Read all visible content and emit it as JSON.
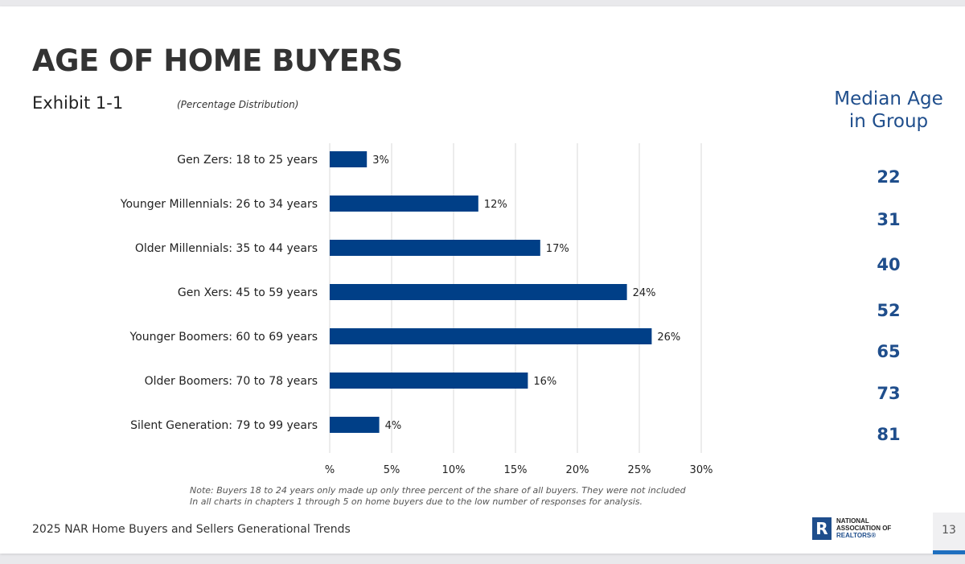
{
  "slide": {
    "title": "AGE OF HOME BUYERS",
    "exhibit": "Exhibit 1-1",
    "subtitle": "(Percentage Distribution)",
    "median_header_line1": "Median Age",
    "median_header_line2": "in Group",
    "median_ages": [
      "22",
      "31",
      "40",
      "52",
      "65",
      "73",
      "81"
    ],
    "note_line1": "Note: Buyers 18 to 24 years only made up only three percent of the share of all buyers. They were not included",
    "note_line2": "In all charts in chapters 1 through 5 on home buyers due to the low number of responses for analysis.",
    "footer_title": "2025 NAR Home Buyers and Sellers Generational Trends",
    "logo_line1": "NATIONAL",
    "logo_line2": "ASSOCIATION OF",
    "logo_line3": "REALTORS®",
    "page_number": "13",
    "colors": {
      "bar": "#003f87",
      "accent": "#1f4e8c",
      "grid": "#d9d9d9"
    }
  },
  "chart_data": {
    "type": "bar",
    "orientation": "horizontal",
    "categories": [
      "Gen Zers: 18 to 25 years",
      "Younger Millennials: 26 to 34 years",
      "Older Millennials: 35 to 44 years",
      "Gen Xers: 45 to 59 years",
      "Younger Boomers: 60 to 69 years",
      "Older Boomers: 70 to 78 years",
      "Silent Generation: 79 to 99 years"
    ],
    "values": [
      3,
      12,
      17,
      24,
      26,
      16,
      4
    ],
    "data_labels": [
      "3%",
      "12%",
      "17%",
      "24%",
      "26%",
      "16%",
      "4%"
    ],
    "x_ticks": [
      "%",
      "5%",
      "10%",
      "15%",
      "20%",
      "25%",
      "30%"
    ],
    "x_tick_values": [
      0,
      5,
      10,
      15,
      20,
      25,
      30
    ],
    "xlim": [
      0,
      30
    ],
    "grid": true
  }
}
